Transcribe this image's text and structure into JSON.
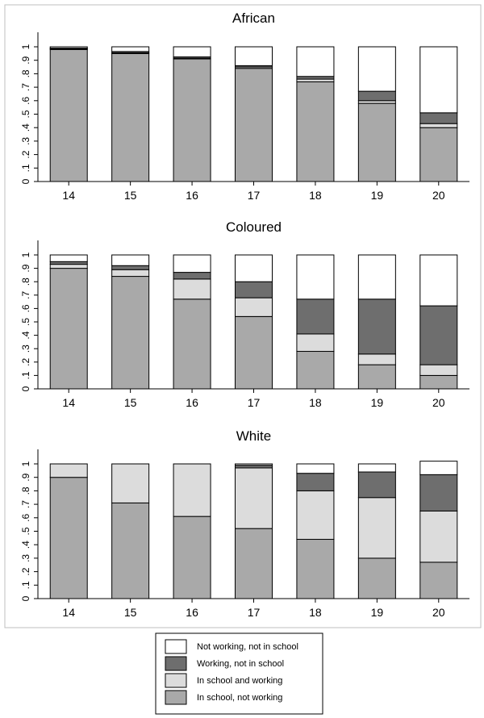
{
  "chart_data": [
    {
      "type": "bar",
      "stacked": true,
      "title": "African",
      "categories": [
        "14",
        "15",
        "16",
        "17",
        "18",
        "19",
        "20"
      ],
      "ylim": [
        0,
        1
      ],
      "yticks": [
        "0",
        ".1",
        ".2",
        ".3",
        ".4",
        ".5",
        ".6",
        ".7",
        ".8",
        ".9",
        "1"
      ],
      "grid": false,
      "series": [
        {
          "name": "In school, not working",
          "values": [
            0.98,
            0.95,
            0.91,
            0.84,
            0.74,
            0.58,
            0.4
          ]
        },
        {
          "name": "In school and working",
          "values": [
            0.005,
            0.005,
            0.005,
            0.01,
            0.02,
            0.02,
            0.03
          ]
        },
        {
          "name": "Working, not in school",
          "values": [
            0.005,
            0.01,
            0.01,
            0.01,
            0.02,
            0.07,
            0.08
          ]
        },
        {
          "name": "Not working, not in school",
          "values": [
            0.01,
            0.035,
            0.075,
            0.14,
            0.22,
            0.33,
            0.49
          ]
        }
      ]
    },
    {
      "type": "bar",
      "stacked": true,
      "title": "Coloured",
      "categories": [
        "14",
        "15",
        "16",
        "17",
        "18",
        "19",
        "20"
      ],
      "ylim": [
        0,
        1
      ],
      "yticks": [
        "0",
        ".1",
        ".2",
        ".3",
        ".4",
        ".5",
        ".6",
        ".7",
        ".8",
        ".9",
        "1"
      ],
      "grid": false,
      "series": [
        {
          "name": "In school, not working",
          "values": [
            0.9,
            0.84,
            0.67,
            0.54,
            0.28,
            0.18,
            0.1
          ]
        },
        {
          "name": "In school and working",
          "values": [
            0.03,
            0.05,
            0.15,
            0.14,
            0.13,
            0.08,
            0.08
          ]
        },
        {
          "name": "Working, not in school",
          "values": [
            0.02,
            0.03,
            0.05,
            0.12,
            0.26,
            0.41,
            0.44
          ]
        },
        {
          "name": "Not working, not in school",
          "values": [
            0.05,
            0.08,
            0.13,
            0.2,
            0.33,
            0.33,
            0.38
          ]
        }
      ]
    },
    {
      "type": "bar",
      "stacked": true,
      "title": "White",
      "categories": [
        "14",
        "15",
        "16",
        "17",
        "18",
        "19",
        "20"
      ],
      "ylim": [
        0,
        1
      ],
      "yticks": [
        "0",
        ".1",
        ".2",
        ".3",
        ".4",
        ".5",
        ".6",
        ".7",
        ".8",
        ".9",
        "1"
      ],
      "grid": false,
      "series": [
        {
          "name": "In school, not working",
          "values": [
            0.9,
            0.71,
            0.61,
            0.52,
            0.44,
            0.3,
            0.27
          ]
        },
        {
          "name": "In school and working",
          "values": [
            0.1,
            0.29,
            0.39,
            0.45,
            0.36,
            0.45,
            0.38
          ]
        },
        {
          "name": "Working, not in school",
          "values": [
            0.0,
            0.0,
            0.0,
            0.02,
            0.13,
            0.19,
            0.27
          ]
        },
        {
          "name": "Not working, not in school",
          "values": [
            0.0,
            0.0,
            0.0,
            0.01,
            0.07,
            0.06,
            0.1
          ]
        }
      ]
    }
  ],
  "legend": {
    "placement": "bottom-center",
    "entries": [
      {
        "label": "Not working, not in school",
        "color": "#ffffff"
      },
      {
        "label": "Working, not in school",
        "color": "#6e6e6e"
      },
      {
        "label": "In school and working",
        "color": "#dcdcdc"
      },
      {
        "label": "In school, not working",
        "color": "#a9a9a9"
      }
    ]
  },
  "colors": {
    "In school, not working": "#a9a9a9",
    "In school and working": "#dcdcdc",
    "Working, not in school": "#6e6e6e",
    "Not working, not in school": "#ffffff",
    "outline": "#000000",
    "panel_border": "#bfbfbf"
  }
}
